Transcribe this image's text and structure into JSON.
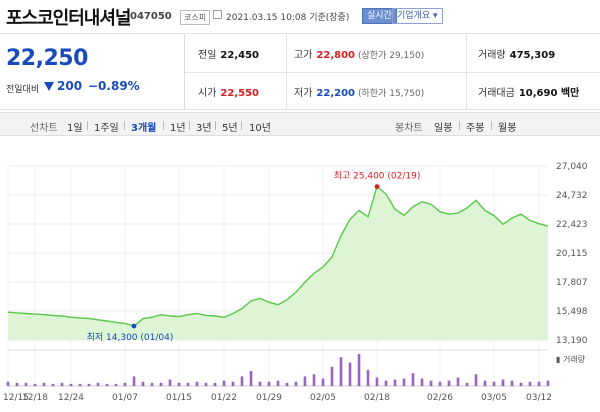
{
  "header": {
    "name": "포스코인터내셔널",
    "code": "047050",
    "market": "코스피",
    "datetime": "2021.03.15 10:08  기준(장중)",
    "realtime_label": "실시간",
    "company_label": "기업개요 ▾"
  },
  "summary": {
    "price": "22,250",
    "change_label": "전일대비",
    "change": "200",
    "change_pct": "−0.89%",
    "prev_close": {
      "label": "전일",
      "value": "22,450"
    },
    "high": {
      "label": "고가",
      "value": "22,800",
      "limit": "(상한가 29,150)"
    },
    "volume": {
      "label": "거래량",
      "value": "475,309"
    },
    "open": {
      "label": "시가",
      "value": "22,550"
    },
    "low": {
      "label": "저가",
      "value": "22,200",
      "limit": "(하한가 15,750)"
    },
    "amount": {
      "label": "거래대금",
      "value": "10,690 백만"
    }
  },
  "period_bar": {
    "label": "선차트",
    "periods": [
      "1일",
      "1주일",
      "3개월",
      "1년",
      "3년",
      "5년",
      "10년"
    ],
    "selected": "3개월",
    "candle_label": "봉차트",
    "candles": [
      "일봉",
      "주봉",
      "월봉"
    ]
  },
  "chart_data": {
    "type": "area",
    "y_ticks": [
      "27,040",
      "24,732",
      "22,423",
      "20,115",
      "17,807",
      "15,498",
      "13,190"
    ],
    "ylim": [
      13190,
      27040
    ],
    "x_labels": [
      "12/15",
      "12/18",
      "12/24",
      "01/07",
      "01/15",
      "01/22",
      "01/29",
      "02/05",
      "02/18",
      "02/26",
      "03/05",
      "03/12"
    ],
    "high_label": "최고 25,400 (02/19)",
    "high": {
      "index": 41,
      "value": 25400
    },
    "low_label": "최저 14,300 (01/04)",
    "low": {
      "index": 14,
      "value": 14300
    },
    "volume_label": "거래량",
    "line_color": "#59c74a",
    "area_color": "#ddf5d4",
    "volume_color": "#9b63c4",
    "prices": [
      15400,
      15350,
      15300,
      15250,
      15200,
      15150,
      15100,
      15000,
      14950,
      14900,
      14800,
      14700,
      14600,
      14500,
      14300,
      14900,
      15000,
      15200,
      15100,
      15050,
      15200,
      15300,
      15150,
      15100,
      15000,
      15300,
      15700,
      16300,
      16500,
      16200,
      16000,
      16400,
      17000,
      17800,
      18500,
      19000,
      19800,
      21500,
      22800,
      23500,
      23000,
      25400,
      24800,
      23600,
      23100,
      23800,
      24200,
      24000,
      23400,
      23200,
      23300,
      23700,
      24300,
      23500,
      23100,
      22400,
      22900,
      23200,
      22700,
      22450,
      22250
    ],
    "volumes": [
      4,
      3,
      3,
      2,
      3,
      2,
      3,
      2,
      2,
      2,
      3,
      2,
      2,
      3,
      9,
      4,
      3,
      3,
      6,
      3,
      3,
      4,
      3,
      3,
      5,
      4,
      9,
      14,
      4,
      4,
      5,
      3,
      4,
      9,
      11,
      7,
      18,
      27,
      22,
      30,
      15,
      8,
      5,
      6,
      7,
      12,
      7,
      5,
      4,
      5,
      8,
      3,
      11,
      5,
      4,
      6,
      5,
      3,
      4,
      4,
      5
    ]
  }
}
